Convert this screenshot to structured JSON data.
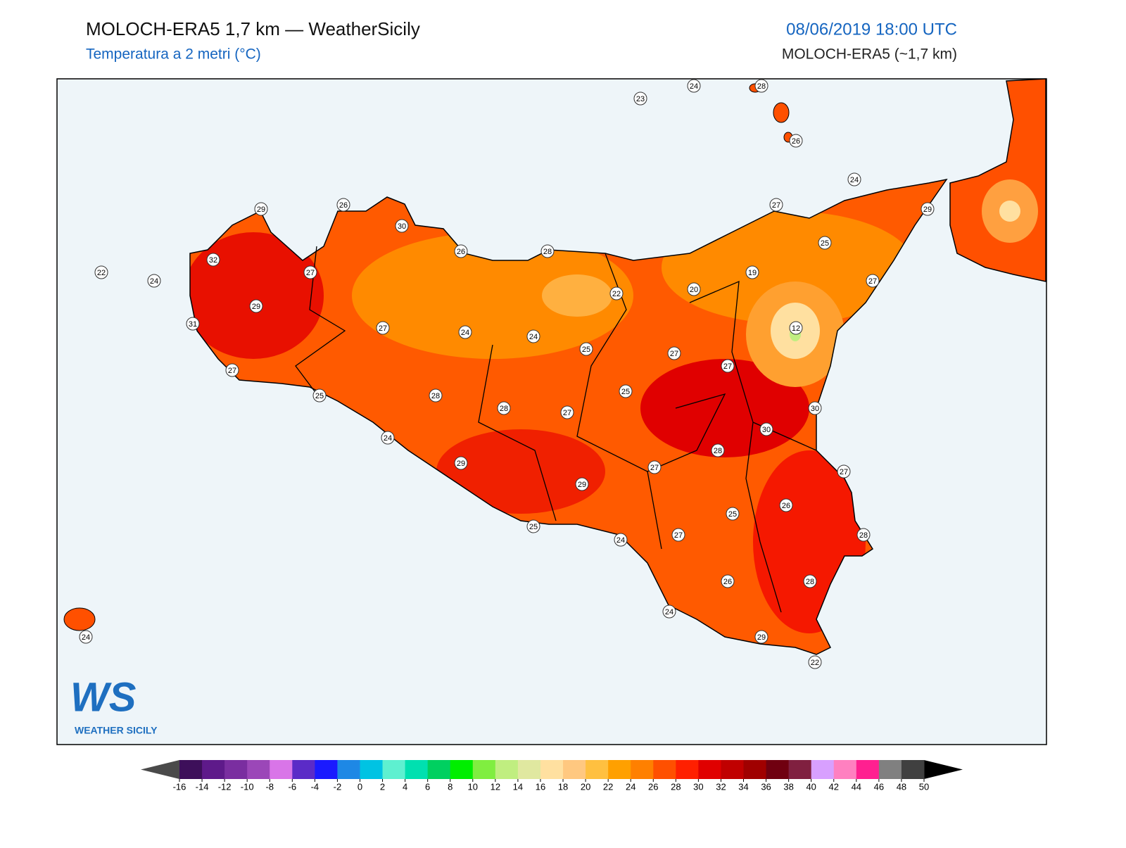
{
  "header": {
    "title": "MOLOCH-ERA5 1,7 km — WeatherSicily",
    "subtitle": "Temperatura a 2 metri (°C)",
    "datetime": "08/06/2019 18:00 UTC",
    "model": "MOLOCH-ERA5 (~1,7 km)"
  },
  "logo": {
    "mark": "WS",
    "name": "WEATHER SICILY"
  },
  "stations": [
    23,
    24,
    28,
    26,
    24,
    27,
    29,
    29,
    26,
    30,
    26,
    28,
    25,
    22,
    24,
    32,
    27,
    19,
    20,
    22,
    27,
    29,
    31,
    27,
    24,
    24,
    12,
    25,
    27,
    27,
    27,
    25,
    25,
    28,
    28,
    27,
    30,
    30,
    24,
    28,
    29,
    27,
    27,
    29,
    26,
    25,
    25,
    28,
    27,
    24,
    26,
    28,
    24,
    24,
    29,
    22
  ],
  "colorbar": {
    "ticks": [
      -16,
      -14,
      -12,
      -10,
      -8,
      -6,
      -4,
      -2,
      0,
      2,
      4,
      6,
      8,
      10,
      12,
      14,
      16,
      18,
      20,
      22,
      24,
      26,
      28,
      30,
      32,
      34,
      36,
      38,
      40,
      42,
      44,
      46,
      48,
      50
    ],
    "colors": [
      "#3d0f5a",
      "#5e1a8a",
      "#7a2ea0",
      "#9b47b8",
      "#d975e8",
      "#5b2bc7",
      "#1a1aff",
      "#1e88e5",
      "#00c3e3",
      "#5ef0d0",
      "#00e0b0",
      "#00d060",
      "#00ee00",
      "#80ee40",
      "#c0ee80",
      "#e0e8a0",
      "#ffe0a0",
      "#ffc880",
      "#ffc040",
      "#ffa000",
      "#ff8000",
      "#ff5000",
      "#ff2000",
      "#e00000",
      "#c00000",
      "#a00000",
      "#700010",
      "#802040",
      "#d8a0ff",
      "#ff80c0",
      "#ff2090",
      "#808080",
      "#404040"
    ],
    "under": "#4a4a4a",
    "over": "#000000"
  }
}
